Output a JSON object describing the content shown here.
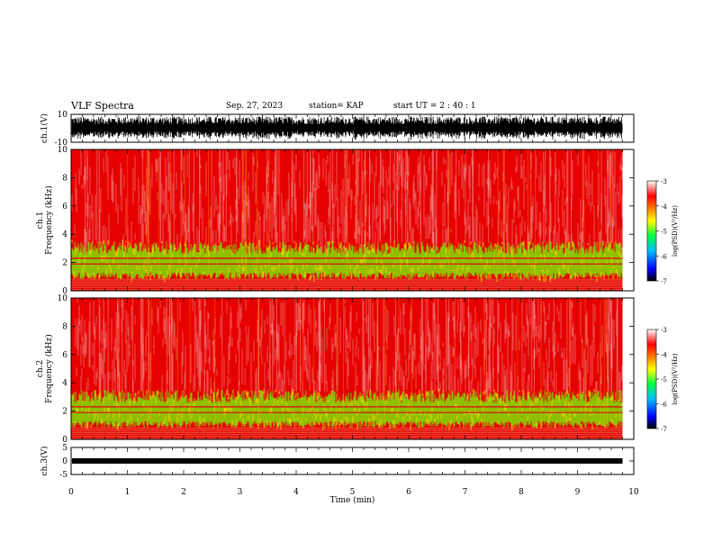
{
  "header": {
    "title": "VLF Spectra",
    "date": "Sep. 27, 2023",
    "station": "station= KAP",
    "start": "start  UT =   2 : 40 : 1"
  },
  "colors": {
    "spectrogram_background": "#e60000",
    "low_band": "#7fe000",
    "scale": [
      "#000000",
      "#0000ff",
      "#00e0ff",
      "#00ff00",
      "#ffff00",
      "#ff8000",
      "#ff0000",
      "#ffffff"
    ]
  },
  "chart_data": [
    {
      "type": "line",
      "name": "waveform-ch1",
      "ylabel": "ch.1(V)",
      "ylim": [
        -10,
        10
      ],
      "yticks": [
        "10",
        "-10"
      ],
      "xlim": [
        0,
        10
      ],
      "series": [
        {
          "x_range": [
            0,
            9.8
          ],
          "y_range": [
            -9,
            9
          ]
        }
      ]
    },
    {
      "type": "heatmap",
      "name": "spectrogram-ch1",
      "ylabel": "ch.1\nFrequency  (kHz)",
      "ylim": [
        0,
        10
      ],
      "yticks": [
        "0",
        "2",
        "4",
        "6",
        "8",
        "10"
      ],
      "xlim": [
        0,
        10
      ],
      "colorbar": {
        "label": "log(PSD)(V²/Hz)",
        "range": [
          -7,
          -3
        ],
        "ticks": [
          "-3",
          "-4",
          "-5",
          "-6",
          "-7"
        ]
      }
    },
    {
      "type": "heatmap",
      "name": "spectrogram-ch2",
      "ylabel": "ch.2\nFrequency  (kHz)",
      "ylim": [
        0,
        10
      ],
      "yticks": [
        "0",
        "2",
        "4",
        "6",
        "8",
        "10"
      ],
      "xlim": [
        0,
        10
      ],
      "colorbar": {
        "label": "log(PSD)(V²/Hz)",
        "range": [
          -7,
          -3
        ],
        "ticks": [
          "-3",
          "-4",
          "-5",
          "-6",
          "-7"
        ]
      }
    },
    {
      "type": "line",
      "name": "waveform-ch3",
      "ylabel": "ch.3(V)",
      "ylim": [
        -5,
        5
      ],
      "yticks": [
        "5",
        "0",
        "-5"
      ],
      "xlim": [
        0,
        10
      ],
      "series": [
        {
          "x_range": [
            0,
            9.8
          ],
          "y_range": [
            -1,
            1
          ]
        }
      ]
    }
  ],
  "xaxis": {
    "label": "Time  (min)",
    "ticks": [
      "0",
      "1",
      "2",
      "3",
      "4",
      "5",
      "6",
      "7",
      "8",
      "9",
      "10"
    ]
  },
  "colorbar_label_text": "log(PSD)(V²/Hz)"
}
